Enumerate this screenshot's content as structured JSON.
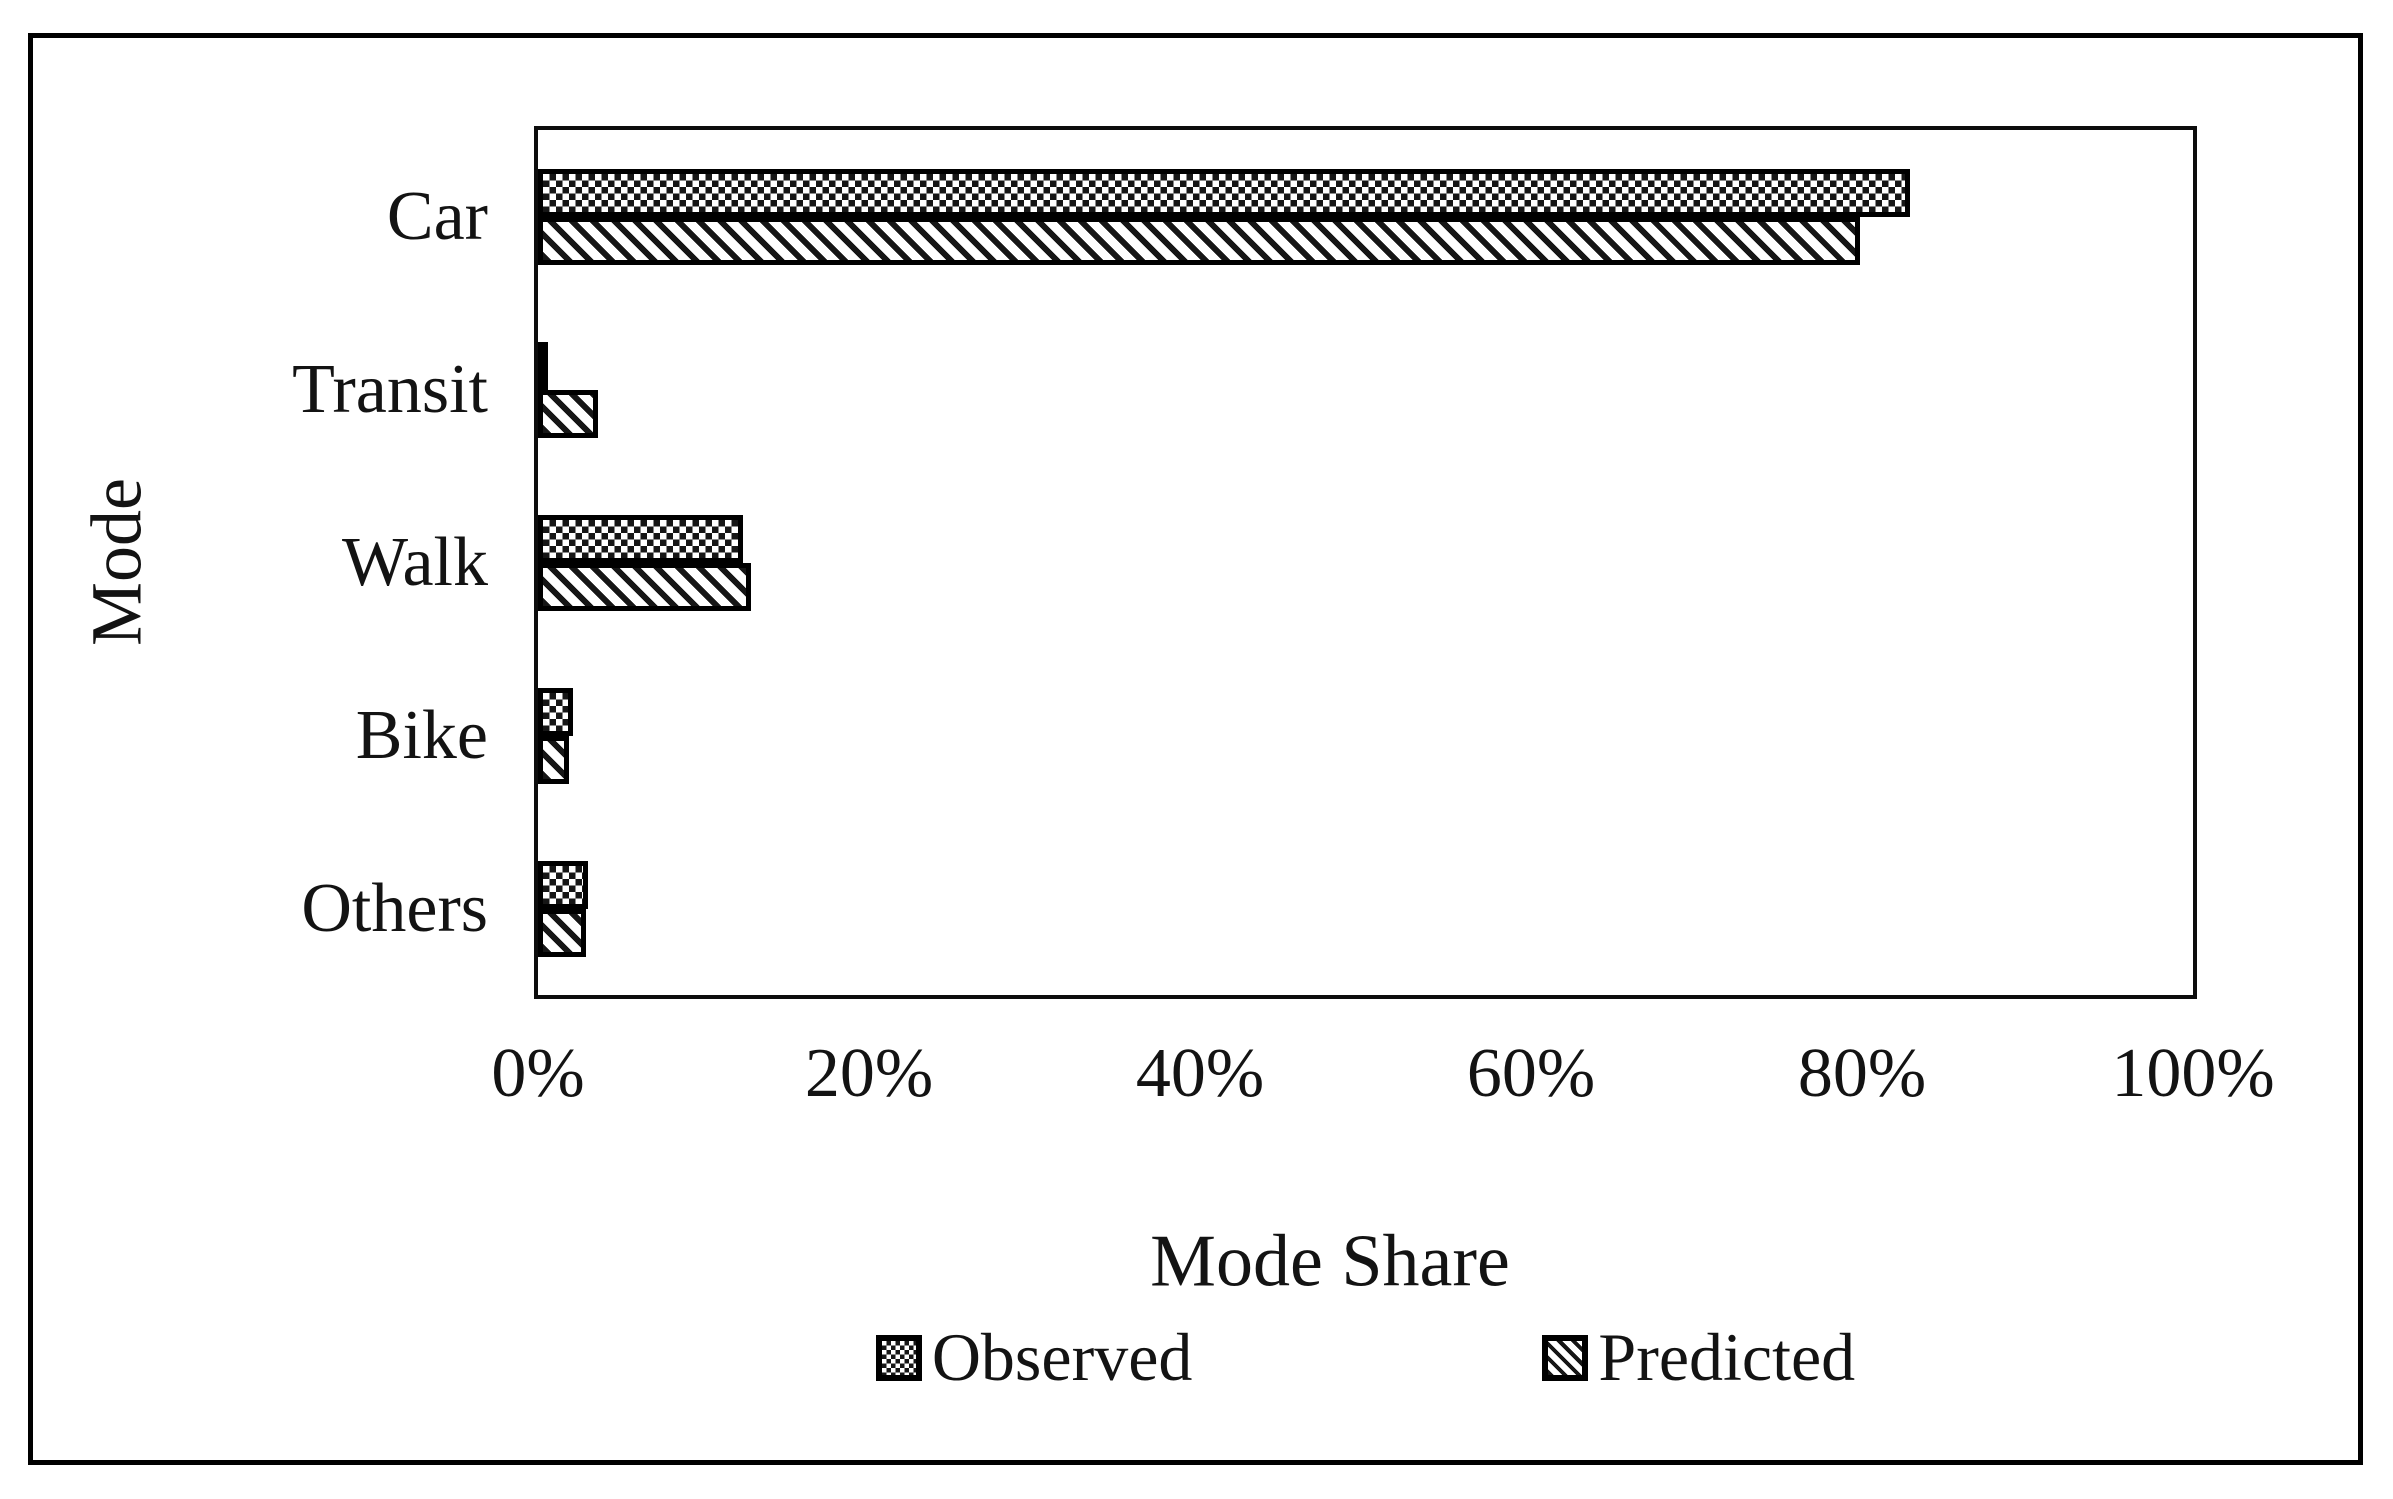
{
  "chart_data": {
    "type": "bar",
    "orientation": "horizontal",
    "title": "",
    "xlabel": "Mode Share",
    "ylabel": "Mode",
    "categories": [
      "Car",
      "Transit",
      "Walk",
      "Bike",
      "Others"
    ],
    "series": [
      {
        "name": "Observed",
        "pattern": "dotted",
        "values": [
          82.9,
          0.5,
          12.4,
          2.1,
          3.0
        ]
      },
      {
        "name": "Predicted",
        "pattern": "diagonal-hatch",
        "values": [
          79.9,
          3.6,
          12.9,
          1.9,
          2.9
        ]
      }
    ],
    "x_ticks": [
      "0%",
      "20%",
      "40%",
      "60%",
      "80%",
      "100%"
    ],
    "xlim": [
      0,
      100
    ],
    "grid": false,
    "legend_position": "bottom",
    "colors": {
      "foreground": "#000000",
      "background": "#ffffff"
    }
  }
}
